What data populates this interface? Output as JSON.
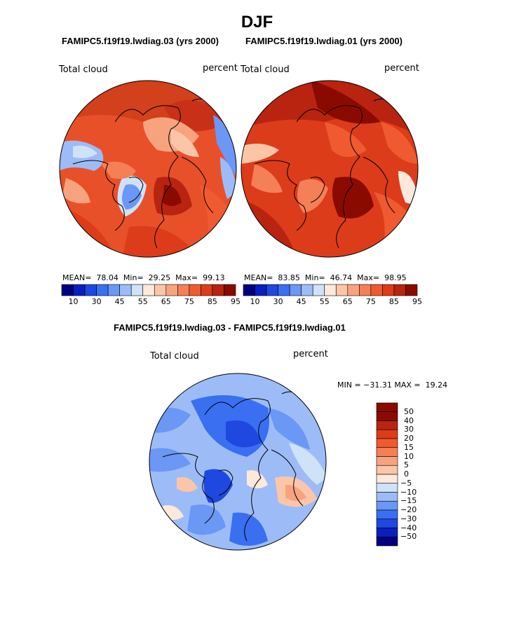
{
  "season": "DJF",
  "panels": [
    {
      "header": "FAMIPC5.f19f19.lwdiag.03 (yrs 2000)",
      "variable": "Total cloud",
      "units": "percent",
      "stats": {
        "mean_label": "MEAN=",
        "mean": "78.04",
        "min_label": "Min=",
        "min": "29.25",
        "max_label": "Max=",
        "max": "99.13"
      },
      "colorbar_ticks": [
        "10",
        "30",
        "45",
        "55",
        "65",
        "75",
        "85",
        "95"
      ]
    },
    {
      "header": "FAMIPC5.f19f19.lwdiag.01 (yrs 2000)",
      "variable": "Total cloud",
      "units": "percent",
      "stats": {
        "mean_label": "MEAN=",
        "mean": "83.85",
        "min_label": "Min=",
        "min": "46.74",
        "max_label": "Max=",
        "max": "98.95"
      },
      "colorbar_ticks": [
        "10",
        "30",
        "45",
        "55",
        "65",
        "75",
        "85",
        "95"
      ]
    }
  ],
  "difference": {
    "header": "FAMIPC5.f19f19.lwdiag.03 - FAMIPC5.f19f19.lwdiag.01",
    "variable": "Total cloud",
    "units": "percent",
    "minmax_text": "MIN = −31.31 MAX =  19.24",
    "colorbar_ticks": [
      "50",
      "40",
      "30",
      "20",
      "15",
      "10",
      "5",
      "0",
      "−5",
      "−10",
      "−15",
      "−20",
      "−30",
      "−40",
      "−50"
    ]
  },
  "colors": {
    "abs_scale": [
      "#00007f",
      "#0a1fbf",
      "#1f48e0",
      "#3a6ff2",
      "#6b97f5",
      "#9dbcf7",
      "#cfe2f8",
      "#fde8dc",
      "#fbc6a8",
      "#f8a37f",
      "#f57f57",
      "#f05a30",
      "#dc3c1a",
      "#b82410",
      "#8b0a00"
    ],
    "diff_scale": [
      "#8b0a00",
      "#b82410",
      "#dc3c1a",
      "#f05a30",
      "#f57f57",
      "#f8a37f",
      "#fbc6a8",
      "#fde8dc",
      "#cfe2f8",
      "#9dbcf7",
      "#6b97f5",
      "#3a6ff2",
      "#1f48e0",
      "#0a1fbf",
      "#00007f"
    ]
  }
}
